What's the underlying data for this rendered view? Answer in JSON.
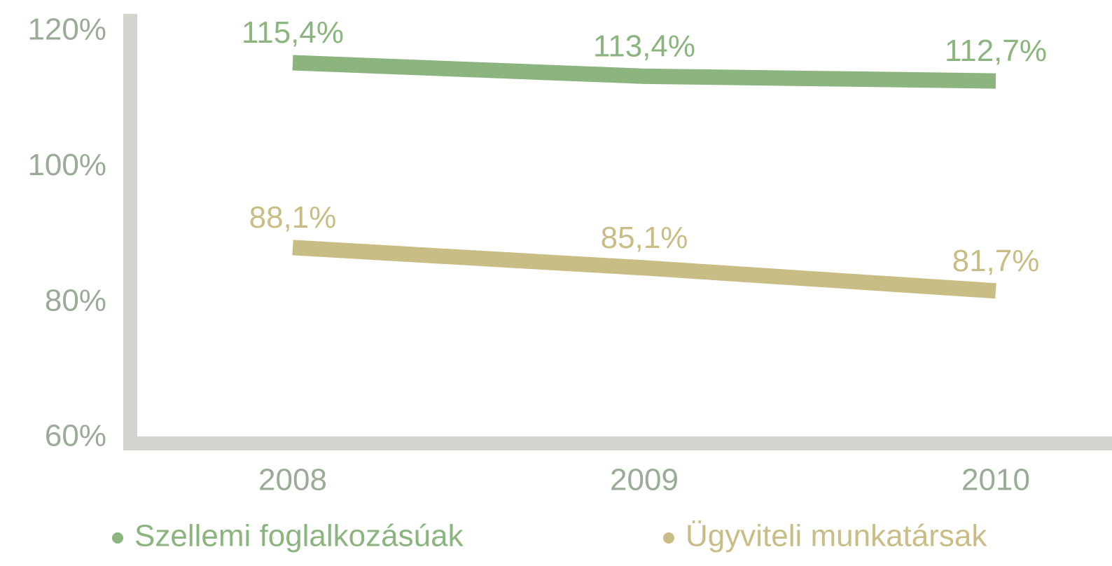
{
  "chart_data": {
    "type": "line",
    "categories": [
      "2008",
      "2009",
      "2010"
    ],
    "series": [
      {
        "name": "Szellemi foglalkozásúak",
        "color": "#8cb47f",
        "values": [
          115.4,
          113.4,
          112.7
        ],
        "value_labels": [
          "115,4%",
          "113,4%",
          "112,7%"
        ]
      },
      {
        "name": "Ügyviteli munkatársak",
        "color": "#c9bd86",
        "values": [
          88.1,
          85.1,
          81.7
        ],
        "value_labels": [
          "88,1%",
          "85,1%",
          "81,7%"
        ]
      }
    ],
    "ylim": [
      60,
      122
    ],
    "yticks": [
      {
        "value": 60,
        "label": "60%"
      },
      {
        "value": 80,
        "label": "80%"
      },
      {
        "value": 100,
        "label": "100%"
      },
      {
        "value": 120,
        "label": "120%"
      }
    ],
    "axis_color": "#d2d4ce"
  }
}
